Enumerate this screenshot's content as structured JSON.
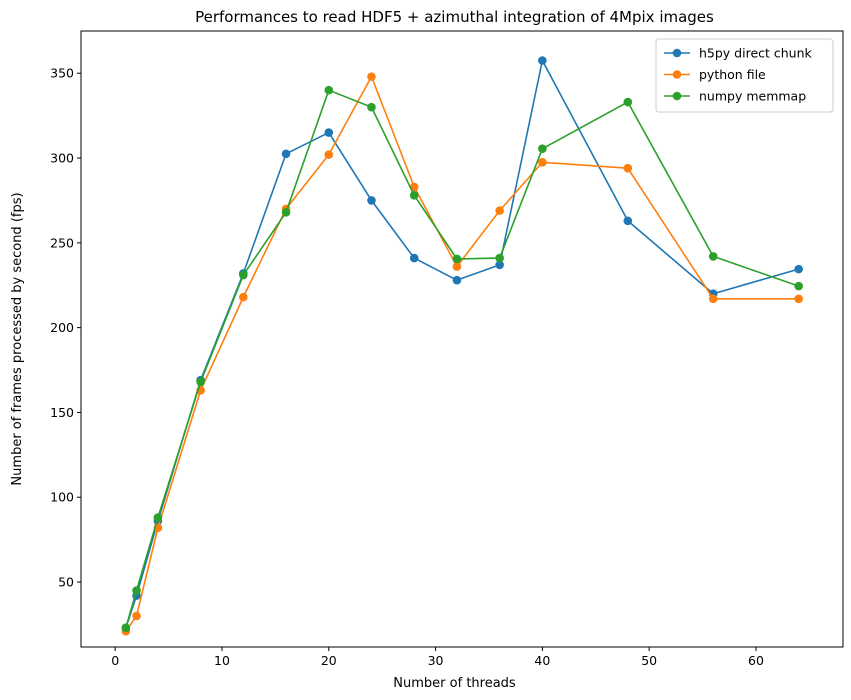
{
  "chart_data": {
    "type": "line",
    "title": "Performances to read HDF5 + azimuthal integration of 4Mpix images",
    "xlabel": "Number of threads",
    "ylabel": "Number of frames processed by second (fps)",
    "xlim": [
      -3.2,
      68.15
    ],
    "ylim": [
      11.7,
      374.9
    ],
    "xticks": [
      0,
      10,
      20,
      30,
      40,
      50,
      60
    ],
    "yticks": [
      50,
      100,
      150,
      200,
      250,
      300,
      350
    ],
    "grid": false,
    "legend_position": "top-right",
    "x": [
      1,
      2,
      4,
      8,
      12,
      16,
      20,
      24,
      28,
      32,
      36,
      40,
      48,
      56,
      64
    ],
    "series": [
      {
        "name": "h5py direct chunk",
        "color": "#1f77b4",
        "values": [
          23,
          42,
          86,
          169,
          232,
          302.5,
          315,
          275,
          241,
          228,
          237,
          357.5,
          263,
          220,
          234.5
        ]
      },
      {
        "name": "python file",
        "color": "#ff7f0e",
        "values": [
          21,
          30,
          82,
          163,
          218,
          270,
          302,
          348,
          283,
          236,
          269,
          297.5,
          294,
          217,
          217
        ]
      },
      {
        "name": "numpy memmap",
        "color": "#2ca02c",
        "values": [
          23,
          45,
          88,
          168,
          231,
          268,
          340,
          330,
          278,
          240.5,
          241,
          305.5,
          333,
          242,
          224.5
        ]
      }
    ]
  }
}
